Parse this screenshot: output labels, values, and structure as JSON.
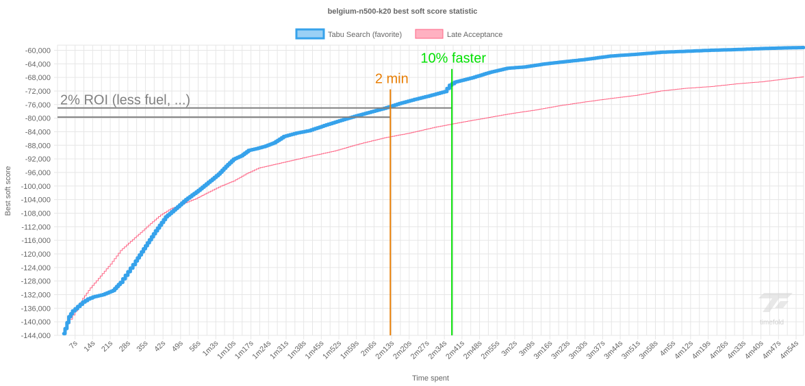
{
  "chart_data": {
    "type": "line",
    "title": "belgium-n500-k20 best soft score statistic",
    "xlabel": "Time spent",
    "ylabel": "Best soft score",
    "ylim": [
      -144000,
      -58500
    ],
    "x_unit": "seconds",
    "xlim": [
      0,
      297
    ],
    "x_ticks": [
      7,
      14,
      21,
      28,
      35,
      42,
      49,
      56,
      63,
      70,
      77,
      84,
      91,
      98,
      105,
      112,
      119,
      126,
      133,
      140,
      147,
      154,
      161,
      168,
      175,
      182,
      189,
      196,
      203,
      210,
      217,
      224,
      231,
      238,
      245,
      252,
      259,
      266,
      273,
      280,
      287,
      294
    ],
    "x_tick_labels": [
      "7s",
      "14s",
      "21s",
      "28s",
      "35s",
      "42s",
      "49s",
      "56s",
      "1m3s",
      "1m10s",
      "1m17s",
      "1m24s",
      "1m31s",
      "1m38s",
      "1m45s",
      "1m52s",
      "1m59s",
      "2m6s",
      "2m13s",
      "2m20s",
      "2m27s",
      "2m34s",
      "2m41s",
      "2m48s",
      "2m55s",
      "3m2s",
      "3m9s",
      "3m16s",
      "3m23s",
      "3m30s",
      "3m37s",
      "3m44s",
      "3m51s",
      "3m58s",
      "4m5s",
      "4m12s",
      "4m19s",
      "4m26s",
      "4m33s",
      "4m40s",
      "4m47s",
      "4m54s"
    ],
    "y_ticks": [
      -60000,
      -64000,
      -68000,
      -72000,
      -76000,
      -80000,
      -84000,
      -88000,
      -92000,
      -96000,
      -100000,
      -104000,
      -108000,
      -112000,
      -116000,
      -120000,
      -124000,
      -128000,
      -132000,
      -136000,
      -140000,
      -144000
    ],
    "y_tick_labels": [
      "-60,000",
      "-64,000",
      "-68,000",
      "-72,000",
      "-76,000",
      "-80,000",
      "-84,000",
      "-88,000",
      "-92,000",
      "-96,000",
      "-100,000",
      "-104,000",
      "-108,000",
      "-112,000",
      "-116,000",
      "-120,000",
      "-124,000",
      "-128,000",
      "-132,000",
      "-136,000",
      "-140,000",
      "-144,000"
    ],
    "grid": true,
    "legend_position": "top",
    "series": [
      {
        "name": "Tabu Search (favorite)",
        "color": "#36a2eb",
        "fill": "#9ad0f5",
        "x": [
          2.5,
          3,
          4.5,
          6,
          8,
          10,
          12,
          14,
          18,
          22,
          25,
          27,
          29,
          31,
          35,
          39,
          43,
          47,
          51,
          56,
          60,
          64,
          67,
          70,
          73,
          76,
          79,
          82,
          86,
          90,
          95,
          100,
          106,
          112,
          118,
          124,
          130,
          136,
          142,
          148,
          154,
          156,
          158,
          165,
          172,
          179,
          186,
          193,
          200,
          210,
          220,
          230,
          240,
          250,
          260,
          270,
          280,
          290,
          297
        ],
        "y": [
          -143500,
          -142000,
          -138500,
          -136800,
          -135500,
          -134200,
          -133300,
          -132700,
          -132000,
          -130800,
          -128400,
          -126300,
          -124200,
          -122100,
          -117600,
          -113200,
          -109100,
          -106600,
          -104000,
          -101300,
          -98900,
          -96500,
          -94200,
          -92100,
          -91100,
          -89500,
          -89000,
          -88400,
          -87300,
          -85400,
          -84400,
          -83700,
          -82200,
          -80800,
          -79500,
          -78300,
          -77100,
          -75700,
          -74500,
          -73400,
          -72200,
          -70300,
          -69400,
          -68100,
          -66500,
          -65300,
          -64900,
          -64100,
          -63500,
          -62700,
          -61700,
          -61200,
          -60600,
          -60300,
          -60000,
          -59800,
          -59500,
          -59300,
          -59200
        ]
      },
      {
        "name": "Late Acceptance",
        "color": "#ff6384",
        "fill": "#ffb1c1",
        "x": [
          2.5,
          4,
          6,
          8,
          10,
          13,
          17,
          21,
          25,
          29,
          33,
          37,
          41,
          45,
          50,
          55,
          60,
          65,
          70,
          75,
          80,
          90,
          100,
          110,
          120,
          130,
          140,
          150,
          160,
          170,
          180,
          190,
          200,
          210,
          220,
          230,
          240,
          250,
          260,
          270,
          280,
          290,
          297
        ],
        "y": [
          -143000,
          -140500,
          -138000,
          -135600,
          -133100,
          -130000,
          -126500,
          -123000,
          -119000,
          -116300,
          -113700,
          -111000,
          -108500,
          -106700,
          -105200,
          -103700,
          -101800,
          -100000,
          -98500,
          -96400,
          -94700,
          -93000,
          -91300,
          -89700,
          -87600,
          -85800,
          -84400,
          -82700,
          -81300,
          -80000,
          -78700,
          -77600,
          -76300,
          -75200,
          -74200,
          -73300,
          -72000,
          -71200,
          -70700,
          -69900,
          -69300,
          -68400,
          -67800
        ]
      }
    ],
    "annotations": [
      {
        "type": "hline",
        "y": -77000,
        "x_from": 0,
        "x_to": 157,
        "color": "#808080",
        "label": "2% ROI (less fuel, ...)"
      },
      {
        "type": "hline",
        "y": -79700,
        "x_from": 0,
        "x_to": 132.5,
        "color": "#808080"
      },
      {
        "type": "vline",
        "x": 132.5,
        "y_to": -71500,
        "color": "#e87e04",
        "label": "2 min"
      },
      {
        "type": "vline",
        "x": 157,
        "y_to": -65500,
        "color": "#00e000",
        "label": "10% faster"
      }
    ]
  },
  "watermark": {
    "text": "timefold",
    "icon": "timefold-logo-icon"
  }
}
